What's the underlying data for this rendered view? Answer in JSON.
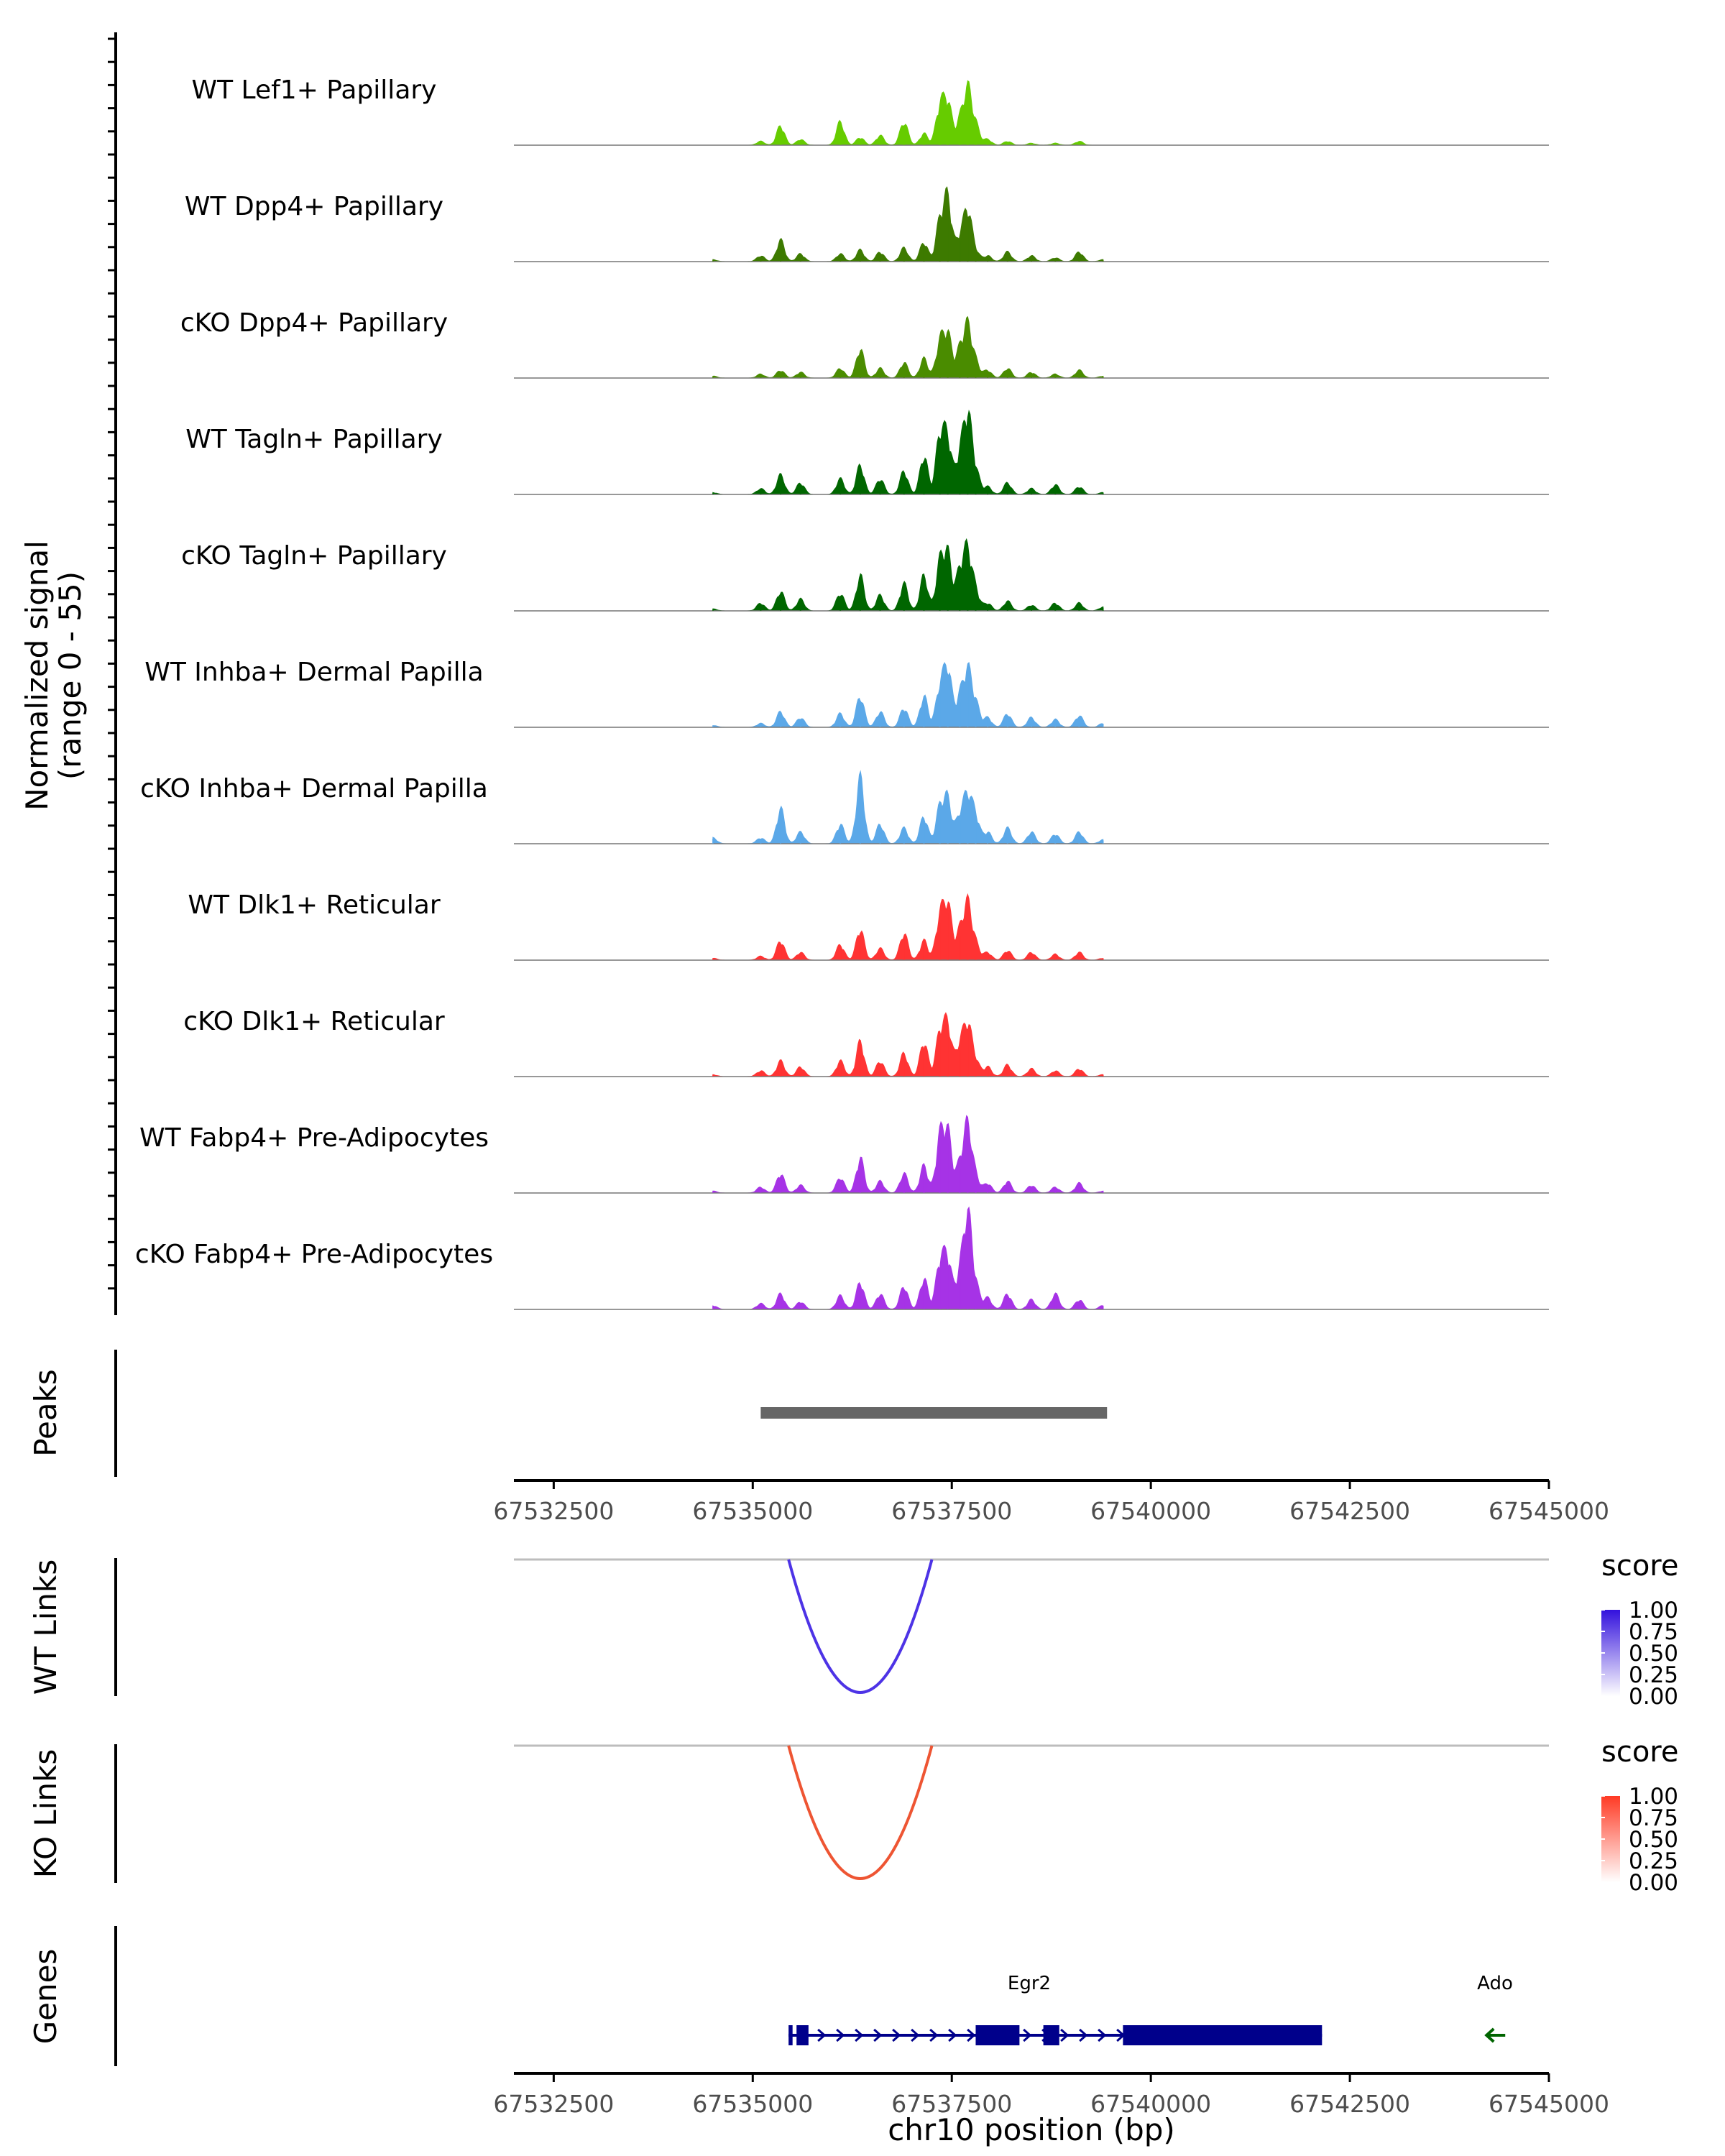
{
  "chart_data": {
    "type": "area",
    "region": "chr10",
    "xlim": [
      67532000,
      67545000
    ],
    "x_ticks": [
      67532500,
      67535000,
      67537500,
      67540000,
      67542500,
      67545000
    ],
    "xlabel": "chr10 position (bp)",
    "coverage": {
      "ylabel": "Normalized signal",
      "ylabel_range": "(range 0 - 55)",
      "ylim": [
        0,
        55
      ],
      "positions": [
        67534500,
        67535100,
        67535350,
        67535600,
        67536100,
        67536350,
        67536600,
        67536900,
        67537150,
        67537350,
        67537450,
        67537600,
        67537700,
        67537800,
        67537950,
        67538200,
        67538500,
        67538800,
        67539100,
        67539400
      ],
      "tracks": [
        {
          "name": "WT Lef1+ Papillary",
          "color": "#66cc00",
          "values": [
            0,
            2,
            10,
            3,
            12,
            4,
            5,
            12,
            6,
            20,
            22,
            12,
            28,
            10,
            3,
            2,
            1,
            1,
            2,
            0
          ]
        },
        {
          "name": "WT Dpp4+ Papillary",
          "color": "#3d7a00",
          "values": [
            1,
            3,
            11,
            4,
            4,
            6,
            5,
            7,
            10,
            20,
            32,
            12,
            26,
            5,
            3,
            5,
            3,
            2,
            5,
            1
          ]
        },
        {
          "name": "cKO Dpp4+ Papillary",
          "color": "#4a8c00",
          "values": [
            1,
            2,
            4,
            3,
            5,
            15,
            5,
            8,
            10,
            18,
            22,
            14,
            26,
            8,
            4,
            5,
            3,
            2,
            4,
            1
          ]
        },
        {
          "name": "WT Tagln+ Papillary",
          "color": "#006600",
          "values": [
            1,
            3,
            10,
            6,
            8,
            15,
            8,
            12,
            20,
            30,
            28,
            20,
            40,
            12,
            4,
            6,
            3,
            5,
            4,
            1
          ]
        },
        {
          "name": "cKO Tagln+ Papillary",
          "color": "#006600",
          "values": [
            1,
            4,
            10,
            6,
            9,
            18,
            8,
            14,
            18,
            24,
            28,
            20,
            30,
            10,
            4,
            5,
            3,
            4,
            4,
            2
          ]
        },
        {
          "name": "WT Inhba+ Dermal Papilla",
          "color": "#5ba8e8",
          "values": [
            1,
            2,
            8,
            5,
            7,
            16,
            8,
            10,
            16,
            20,
            30,
            15,
            28,
            12,
            5,
            7,
            5,
            4,
            6,
            2
          ]
        },
        {
          "name": "cKO Inhba+ Dermal Papilla",
          "color": "#5ba8e8",
          "values": [
            3,
            3,
            18,
            6,
            10,
            34,
            10,
            8,
            14,
            18,
            22,
            14,
            24,
            14,
            6,
            8,
            6,
            5,
            6,
            2
          ]
        },
        {
          "name": "WT Dlk1+ Reticular",
          "color": "#ff3333",
          "values": [
            1,
            2,
            10,
            4,
            8,
            16,
            6,
            14,
            10,
            22,
            28,
            14,
            28,
            8,
            4,
            5,
            4,
            3,
            4,
            1
          ]
        },
        {
          "name": "cKO Dlk1+ Reticular",
          "color": "#ff3333",
          "values": [
            1,
            3,
            8,
            5,
            8,
            18,
            8,
            12,
            18,
            22,
            26,
            16,
            26,
            8,
            5,
            6,
            4,
            3,
            4,
            1
          ]
        },
        {
          "name": "WT Fabp4+ Pre-Adipocytes",
          "color": "#a633e6",
          "values": [
            1,
            3,
            10,
            4,
            8,
            18,
            6,
            10,
            14,
            28,
            30,
            14,
            34,
            8,
            5,
            6,
            4,
            3,
            5,
            1
          ]
        },
        {
          "name": "cKO Fabp4+ Pre-Adipocytes",
          "color": "#a633e6",
          "values": [
            2,
            3,
            8,
            4,
            7,
            14,
            8,
            12,
            16,
            24,
            26,
            18,
            48,
            12,
            6,
            8,
            5,
            8,
            5,
            2
          ]
        }
      ]
    },
    "peaks": {
      "label": "Peaks",
      "ranges": [
        [
          67535100,
          67539450
        ]
      ]
    },
    "links": [
      {
        "label": "WT Links",
        "start": 67535450,
        "end": 67537250,
        "score": 0.95,
        "color": "#4d33e6",
        "legend_title": "score",
        "legend_ticks": [
          "1.00",
          "0.75",
          "0.50",
          "0.25",
          "0.00"
        ],
        "legend_color": "#3311dd"
      },
      {
        "label": "KO Links",
        "start": 67535450,
        "end": 67537250,
        "score": 0.85,
        "color": "#ee5533",
        "legend_title": "score",
        "legend_ticks": [
          "1.00",
          "0.75",
          "0.50",
          "0.25",
          "0.00"
        ],
        "legend_color": "#ff3a24"
      }
    ],
    "genes": {
      "label": "Genes",
      "items": [
        {
          "name": "Egr2",
          "start": 67535450,
          "end": 67542150,
          "strand": "+",
          "color": "#00008b",
          "exons": [
            [
              67535450,
              67535500
            ],
            [
              67535550,
              67535700
            ],
            [
              67537800,
              67538350
            ],
            [
              67538650,
              67538850
            ],
            [
              67539650,
              67542150
            ]
          ]
        },
        {
          "name": "Ado",
          "start": 67544200,
          "end": 67544450,
          "strand": "-",
          "color": "#006400",
          "exons": []
        }
      ]
    }
  }
}
